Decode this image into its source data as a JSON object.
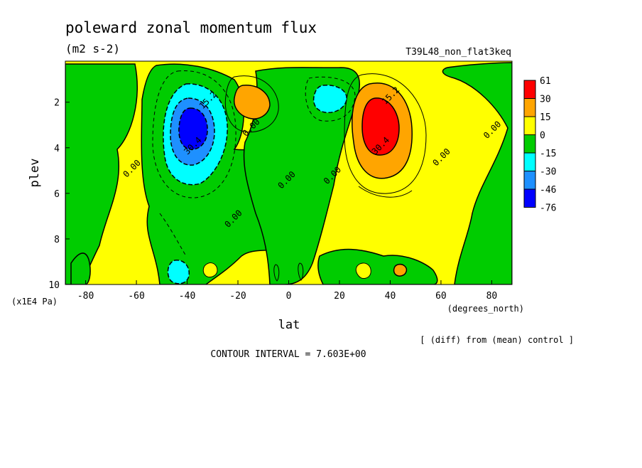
{
  "chart_data": {
    "type": "heatmap",
    "title": "poleward zonal momentum flux",
    "units": "(m2 s-2)",
    "experiment": "T39L48_non_flat3keq",
    "xlabel": "lat",
    "xunits": "(degrees_north)",
    "ylabel": "plev",
    "yunits": "(x1E4 Pa)",
    "xlim": [
      -88,
      88
    ],
    "ylim": [
      10,
      0.2
    ],
    "x_ticks": [
      "-80",
      "-60",
      "-40",
      "-20",
      "0",
      "20",
      "40",
      "60",
      "80"
    ],
    "x_tick_values": [
      -80,
      -60,
      -40,
      -20,
      0,
      20,
      40,
      60,
      80
    ],
    "y_ticks": [
      "2",
      "4",
      "6",
      "8",
      "10"
    ],
    "y_tick_values": [
      2,
      4,
      6,
      8,
      10
    ],
    "contour_interval_text": "CONTOUR INTERVAL = 7.603E+00",
    "comparison_text": "[ (diff) from (mean) control ]",
    "colorbar": {
      "labels": [
        "61",
        "30",
        "15",
        "0",
        "-15",
        "-30",
        "-46",
        "-76"
      ],
      "colors": [
        "#ff0000",
        "#ffa500",
        "#ffff00",
        "#00cc00",
        "#00ffff",
        "#1e90ff",
        "#0000ff"
      ]
    },
    "contour_labels": [
      {
        "text": "15.2",
        "lat": -31,
        "p": 2.0
      },
      {
        "text": "30.4",
        "lat": -37,
        "p": 4.0
      },
      {
        "text": "0.00",
        "lat": -14,
        "p": 3.2
      },
      {
        "text": "0.00",
        "lat": -61,
        "p": 5.0
      },
      {
        "text": "0.00",
        "lat": 0,
        "p": 5.5
      },
      {
        "text": "0.00",
        "lat": -21,
        "p": 7.2
      },
      {
        "text": "0.00",
        "lat": 18,
        "p": 5.3
      },
      {
        "text": "15.2",
        "lat": 41,
        "p": 1.8
      },
      {
        "text": "30.4",
        "lat": 37,
        "p": 4.0
      },
      {
        "text": "0.00",
        "lat": 61,
        "p": 4.5
      },
      {
        "text": "0.00",
        "lat": 81,
        "p": 3.3
      }
    ],
    "features": [
      {
        "sign": "negative",
        "lat": -37,
        "p": 3.2,
        "peak": -76
      },
      {
        "sign": "positive",
        "lat": -15,
        "p": 1.8,
        "peak": 30
      },
      {
        "sign": "negative",
        "lat": 14,
        "p": 1.7,
        "peak": -30
      },
      {
        "sign": "positive",
        "lat": 36,
        "p": 3.0,
        "peak": 61
      },
      {
        "sign": "negative",
        "lat": -40,
        "p": 9.4,
        "peak": -30
      },
      {
        "sign": "positive",
        "lat": 44,
        "p": 9.3,
        "peak": 30
      }
    ]
  }
}
